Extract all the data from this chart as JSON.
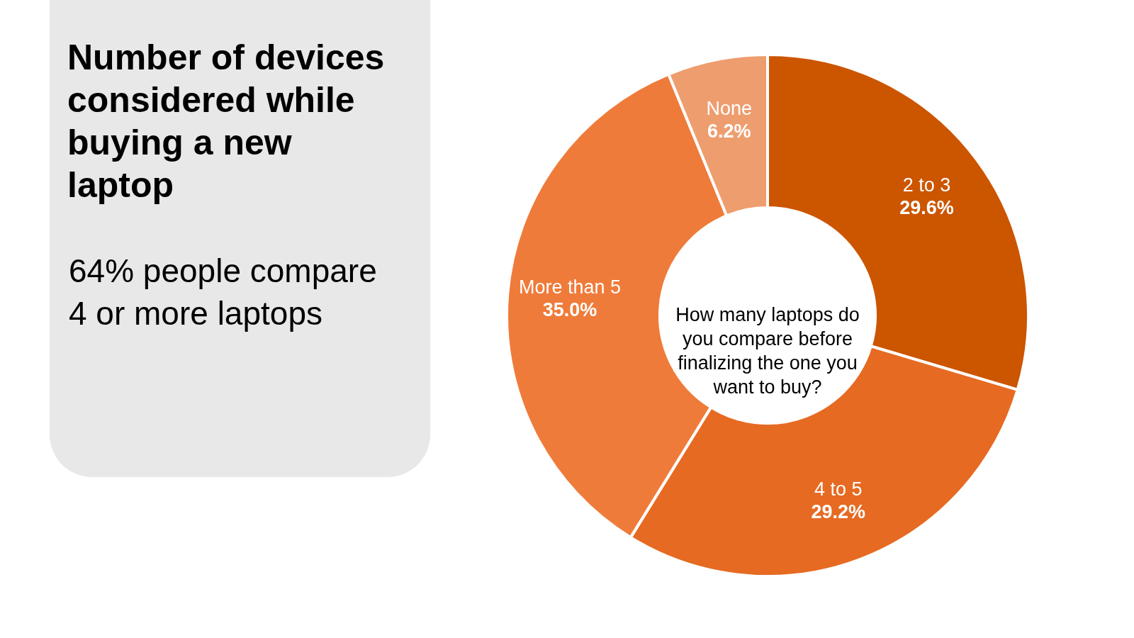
{
  "chart_data": {
    "type": "donut",
    "title": "Number of devices considered while buying a new laptop",
    "subtitle": "64% people compare 4 or more laptops",
    "categories": [
      "2 to 3",
      "4 to 5",
      "More than 5",
      "None"
    ],
    "values": [
      29.6,
      29.2,
      35.0,
      6.2
    ],
    "value_labels": [
      "29.6%",
      "29.2%",
      "35.0%",
      "6.2%"
    ],
    "colors": [
      "#cc5500",
      "#e66a22",
      "#ef7b3a",
      "#ee9d6e"
    ],
    "annotations": [
      "How many laptops do you compare before finalizing the one you want to buy?"
    ]
  }
}
